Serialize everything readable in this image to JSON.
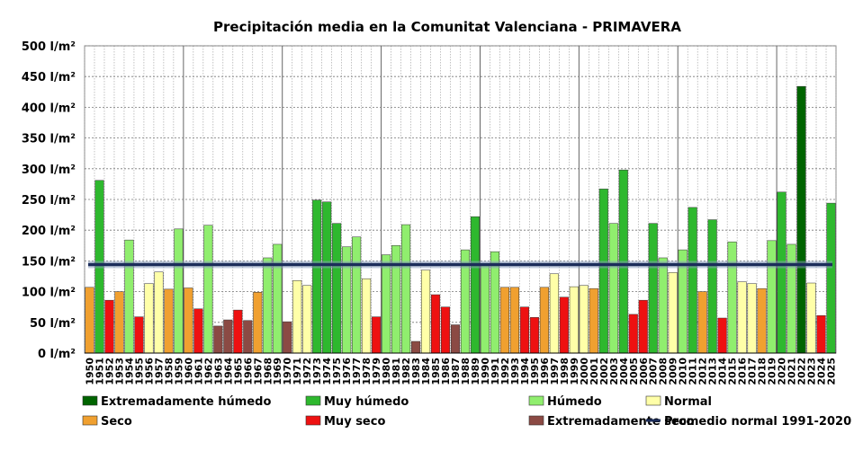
{
  "chart_data": {
    "type": "bar",
    "title": "Precipitación media en la Comunitat Valenciana - PRIMAVERA",
    "xlabel": "",
    "ylabel": "",
    "ylim": [
      0,
      500
    ],
    "y_ticks": [
      "0 l/m²",
      "50 l/m²",
      "100 l/m²",
      "150 l/m²",
      "200 l/m²",
      "250 l/m²",
      "300 l/m²",
      "350 l/m²",
      "400 l/m²",
      "450 l/m²",
      "500 l/m²"
    ],
    "grid": true,
    "legend_position": "bottom",
    "categories": [
      "1950",
      "1951",
      "1952",
      "1953",
      "1954",
      "1955",
      "1956",
      "1957",
      "1958",
      "1959",
      "1960",
      "1961",
      "1962",
      "1963",
      "1964",
      "1965",
      "1966",
      "1967",
      "1968",
      "1969",
      "1970",
      "1971",
      "1972",
      "1973",
      "1974",
      "1975",
      "1976",
      "1977",
      "1978",
      "1979",
      "1980",
      "1981",
      "1982",
      "1983",
      "1984",
      "1985",
      "1986",
      "1987",
      "1988",
      "1989",
      "1990",
      "1991",
      "1992",
      "1993",
      "1994",
      "1995",
      "1996",
      "1997",
      "1998",
      "1999",
      "2000",
      "2001",
      "2002",
      "2003",
      "2004",
      "2005",
      "2006",
      "2007",
      "2008",
      "2009",
      "2010",
      "2011",
      "2012",
      "2013",
      "2014",
      "2015",
      "2016",
      "2017",
      "2018",
      "2019",
      "2020",
      "2021",
      "2022",
      "2023",
      "2024",
      "2025"
    ],
    "values": [
      107,
      281,
      86,
      100,
      184,
      59,
      113,
      132,
      104,
      202,
      106,
      72,
      208,
      44,
      54,
      70,
      53,
      99,
      155,
      177,
      51,
      118,
      110,
      249,
      246,
      211,
      173,
      189,
      121,
      59,
      160,
      175,
      209,
      19,
      135,
      95,
      75,
      46,
      168,
      222,
      145,
      165,
      107,
      107,
      75,
      58,
      107,
      129,
      91,
      108,
      110,
      105,
      267,
      211,
      298,
      63,
      86,
      211,
      155,
      131,
      168,
      237,
      100,
      217,
      57,
      181,
      116,
      113,
      105,
      183,
      262,
      177,
      434,
      114,
      61,
      244
    ],
    "classes": [
      "seco",
      "muy_humedo",
      "muy_seco",
      "seco",
      "humedo",
      "muy_seco",
      "normal",
      "normal",
      "seco",
      "humedo",
      "seco",
      "muy_seco",
      "humedo",
      "ext_seco",
      "ext_seco",
      "muy_seco",
      "ext_seco",
      "seco",
      "humedo",
      "humedo",
      "ext_seco",
      "normal",
      "normal",
      "muy_humedo",
      "muy_humedo",
      "muy_humedo",
      "humedo",
      "humedo",
      "normal",
      "muy_seco",
      "humedo",
      "humedo",
      "humedo",
      "ext_seco",
      "normal",
      "muy_seco",
      "muy_seco",
      "ext_seco",
      "humedo",
      "muy_humedo",
      "humedo",
      "humedo",
      "seco",
      "seco",
      "muy_seco",
      "muy_seco",
      "seco",
      "normal",
      "muy_seco",
      "normal",
      "normal",
      "seco",
      "muy_humedo",
      "humedo",
      "muy_humedo",
      "muy_seco",
      "muy_seco",
      "muy_humedo",
      "humedo",
      "normal",
      "humedo",
      "muy_humedo",
      "seco",
      "muy_humedo",
      "muy_seco",
      "humedo",
      "normal",
      "normal",
      "seco",
      "humedo",
      "muy_humedo",
      "humedo",
      "ext_humedo",
      "normal",
      "muy_seco",
      "muy_humedo"
    ],
    "reference_line": {
      "name": "Promedio normal 1991-2020",
      "value": 144,
      "color": "#1c2d5a"
    },
    "class_colors": {
      "ext_humedo": "#006400",
      "muy_humedo": "#2eb82e",
      "humedo": "#90ee6e",
      "normal": "#ffffa8",
      "seco": "#f0a030",
      "muy_seco": "#ee1111",
      "ext_seco": "#8b4a44"
    },
    "legend": [
      {
        "key": "ext_humedo",
        "label": "Extremadamente húmedo"
      },
      {
        "key": "muy_humedo",
        "label": "Muy húmedo"
      },
      {
        "key": "humedo",
        "label": "Húmedo"
      },
      {
        "key": "normal",
        "label": "Normal"
      },
      {
        "key": "seco",
        "label": "Seco"
      },
      {
        "key": "muy_seco",
        "label": "Muy seco"
      },
      {
        "key": "ext_seco",
        "label": "Extremadamente seco"
      },
      {
        "key": "line",
        "label": "Promedio normal 1991-2020"
      }
    ]
  }
}
